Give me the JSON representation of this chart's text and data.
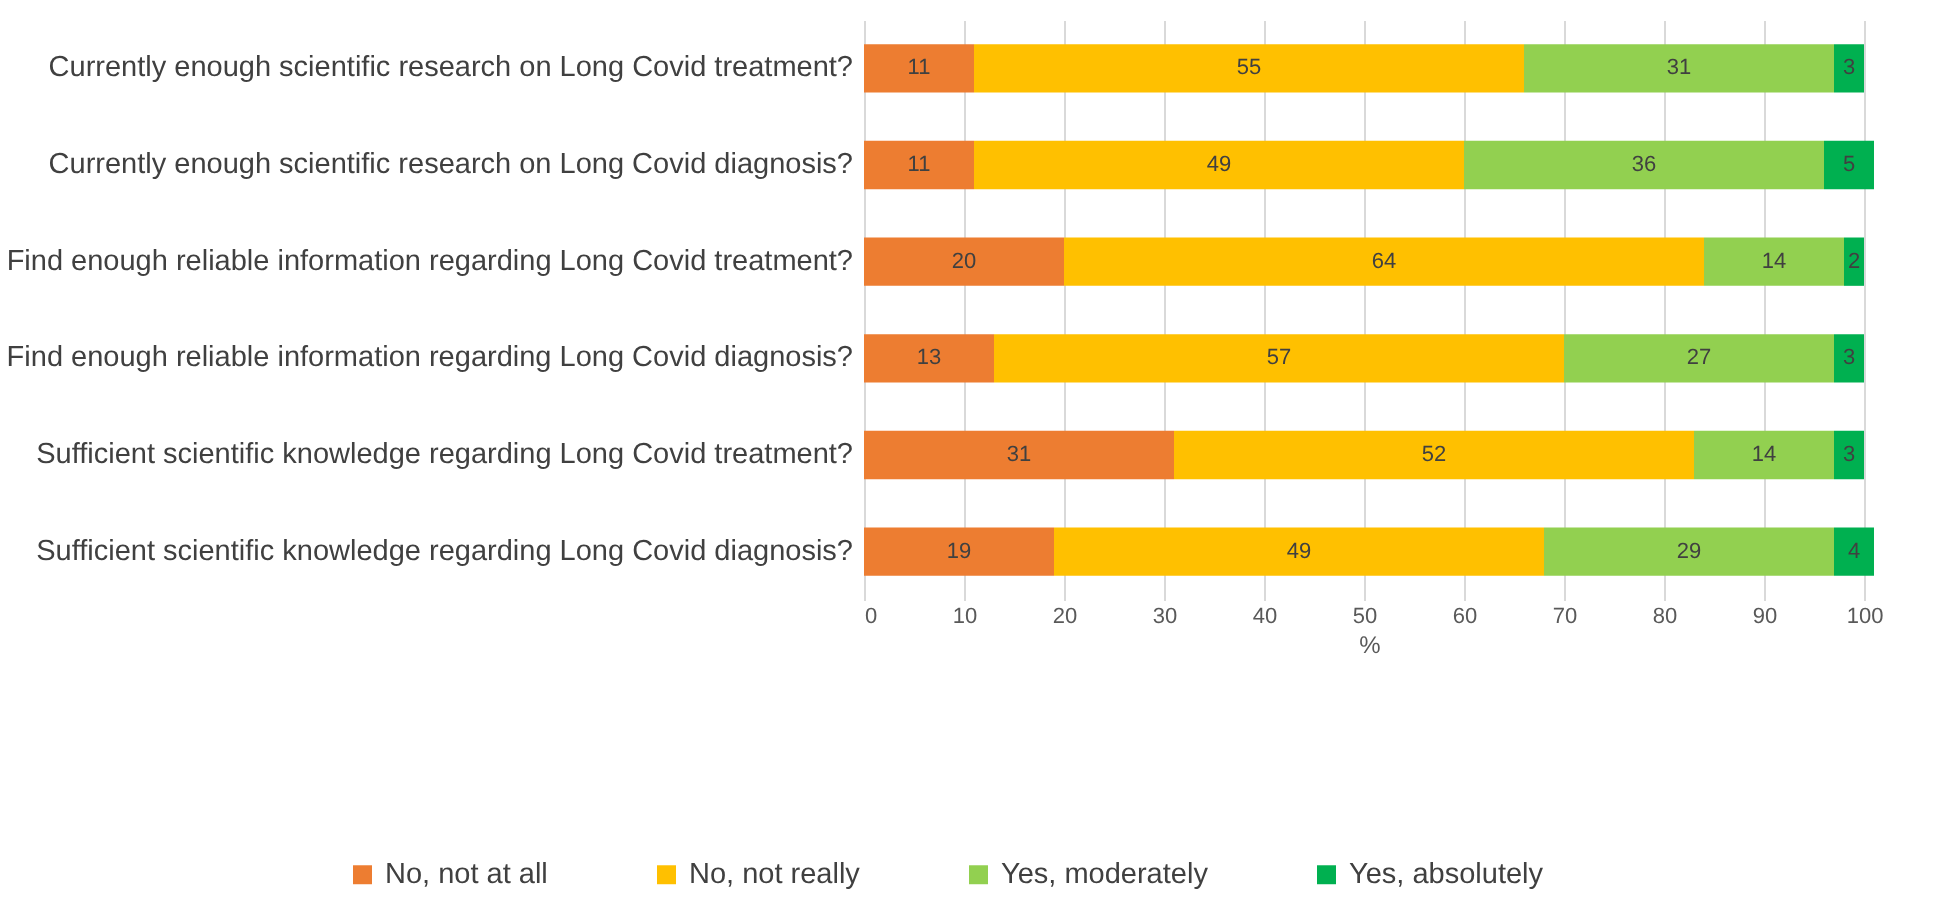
{
  "chart_data": {
    "type": "bar",
    "orientation": "horizontal",
    "stacked": true,
    "xlabel": "%",
    "categories": [
      "Currently enough scientific research on Long Covid treatment?",
      "Currently enough scientific research on Long Covid diagnosis?",
      "Find enough reliable information regarding Long Covid treatment?",
      "Find enough reliable information regarding Long Covid diagnosis?",
      "Sufficient scientific knowledge regarding Long Covid treatment?",
      "Sufficient scientific knowledge regarding Long Covid diagnosis?"
    ],
    "series": [
      {
        "name": "No, not at all",
        "color": "#ed7d31",
        "values": [
          11,
          11,
          20,
          13,
          31,
          19
        ]
      },
      {
        "name": "No, not really",
        "color": "#ffc000",
        "values": [
          55,
          49,
          64,
          57,
          52,
          49
        ]
      },
      {
        "name": "Yes, moderately",
        "color": "#92d050",
        "values": [
          31,
          36,
          14,
          27,
          14,
          29
        ]
      },
      {
        "name": "Yes, absolutely",
        "color": "#00b050",
        "values": [
          3,
          5,
          2,
          3,
          3,
          4
        ]
      }
    ],
    "xlim": [
      0,
      101
    ],
    "xticks": [
      0,
      10,
      20,
      30,
      40,
      50,
      60,
      70,
      80,
      90,
      100
    ],
    "grid": "x",
    "legend": "bottom",
    "data_labels": true
  }
}
